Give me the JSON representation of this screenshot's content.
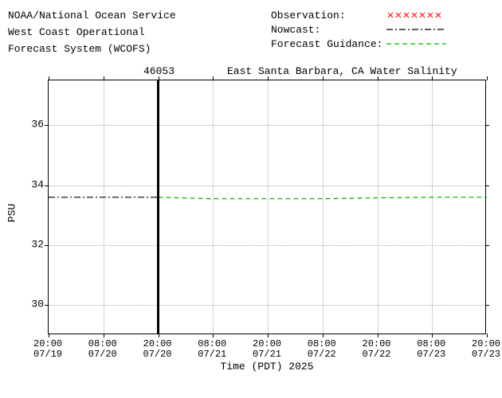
{
  "header": {
    "line1": "NOAA/National Ocean Service",
    "line2": "West Coast Operational",
    "line3": "Forecast System (WCOFS)"
  },
  "legend": {
    "observation": {
      "label": "Observation:",
      "color": "#ff0000",
      "style": "xmarks"
    },
    "nowcast": {
      "label": "Nowcast:",
      "color": "#000000",
      "style": "dashdot"
    },
    "forecast": {
      "label": "Forecast Guidance:",
      "color": "#00b000",
      "style": "dashed"
    }
  },
  "chart": {
    "type": "line",
    "station_id": "46053",
    "title": "East Santa Barbara, CA Water Salinity",
    "ylabel": "PSU",
    "xlabel": "Time (PDT) 2025",
    "ylim": [
      29,
      37.5
    ],
    "ytick_step": 2,
    "yticks": [
      30,
      32,
      34,
      36
    ],
    "xticks": [
      {
        "t": 0,
        "label1": "20:00",
        "label2": "07/19"
      },
      {
        "t": 12,
        "label1": "08:00",
        "label2": "07/20"
      },
      {
        "t": 24,
        "label1": "20:00",
        "label2": "07/20"
      },
      {
        "t": 36,
        "label1": "08:00",
        "label2": "07/21"
      },
      {
        "t": 48,
        "label1": "20:00",
        "label2": "07/21"
      },
      {
        "t": 60,
        "label1": "08:00",
        "label2": "07/22"
      },
      {
        "t": 72,
        "label1": "20:00",
        "label2": "07/22"
      },
      {
        "t": 84,
        "label1": "08:00",
        "label2": "07/23"
      },
      {
        "t": 96,
        "label1": "20:00",
        "label2": "07/23"
      }
    ],
    "xlim": [
      0,
      96
    ],
    "now_x": 24,
    "nowcast_series": {
      "color": "#000000",
      "dash": "8,3,2,3",
      "width": 1.2,
      "points": [
        {
          "x": 0,
          "y": 33.6
        },
        {
          "x": 24,
          "y": 33.6
        }
      ]
    },
    "forecast_series": {
      "color": "#00b000",
      "dash": "6,4",
      "width": 1.2,
      "points": [
        {
          "x": 24,
          "y": 33.6
        },
        {
          "x": 36,
          "y": 33.55
        },
        {
          "x": 48,
          "y": 33.55
        },
        {
          "x": 60,
          "y": 33.55
        },
        {
          "x": 72,
          "y": 33.58
        },
        {
          "x": 84,
          "y": 33.6
        },
        {
          "x": 96,
          "y": 33.6
        }
      ]
    },
    "background_color": "#ffffff",
    "grid_color": "#aaaaaa",
    "text_color": "#000000",
    "font_family": "Courier New",
    "label_fontsize": 13
  }
}
